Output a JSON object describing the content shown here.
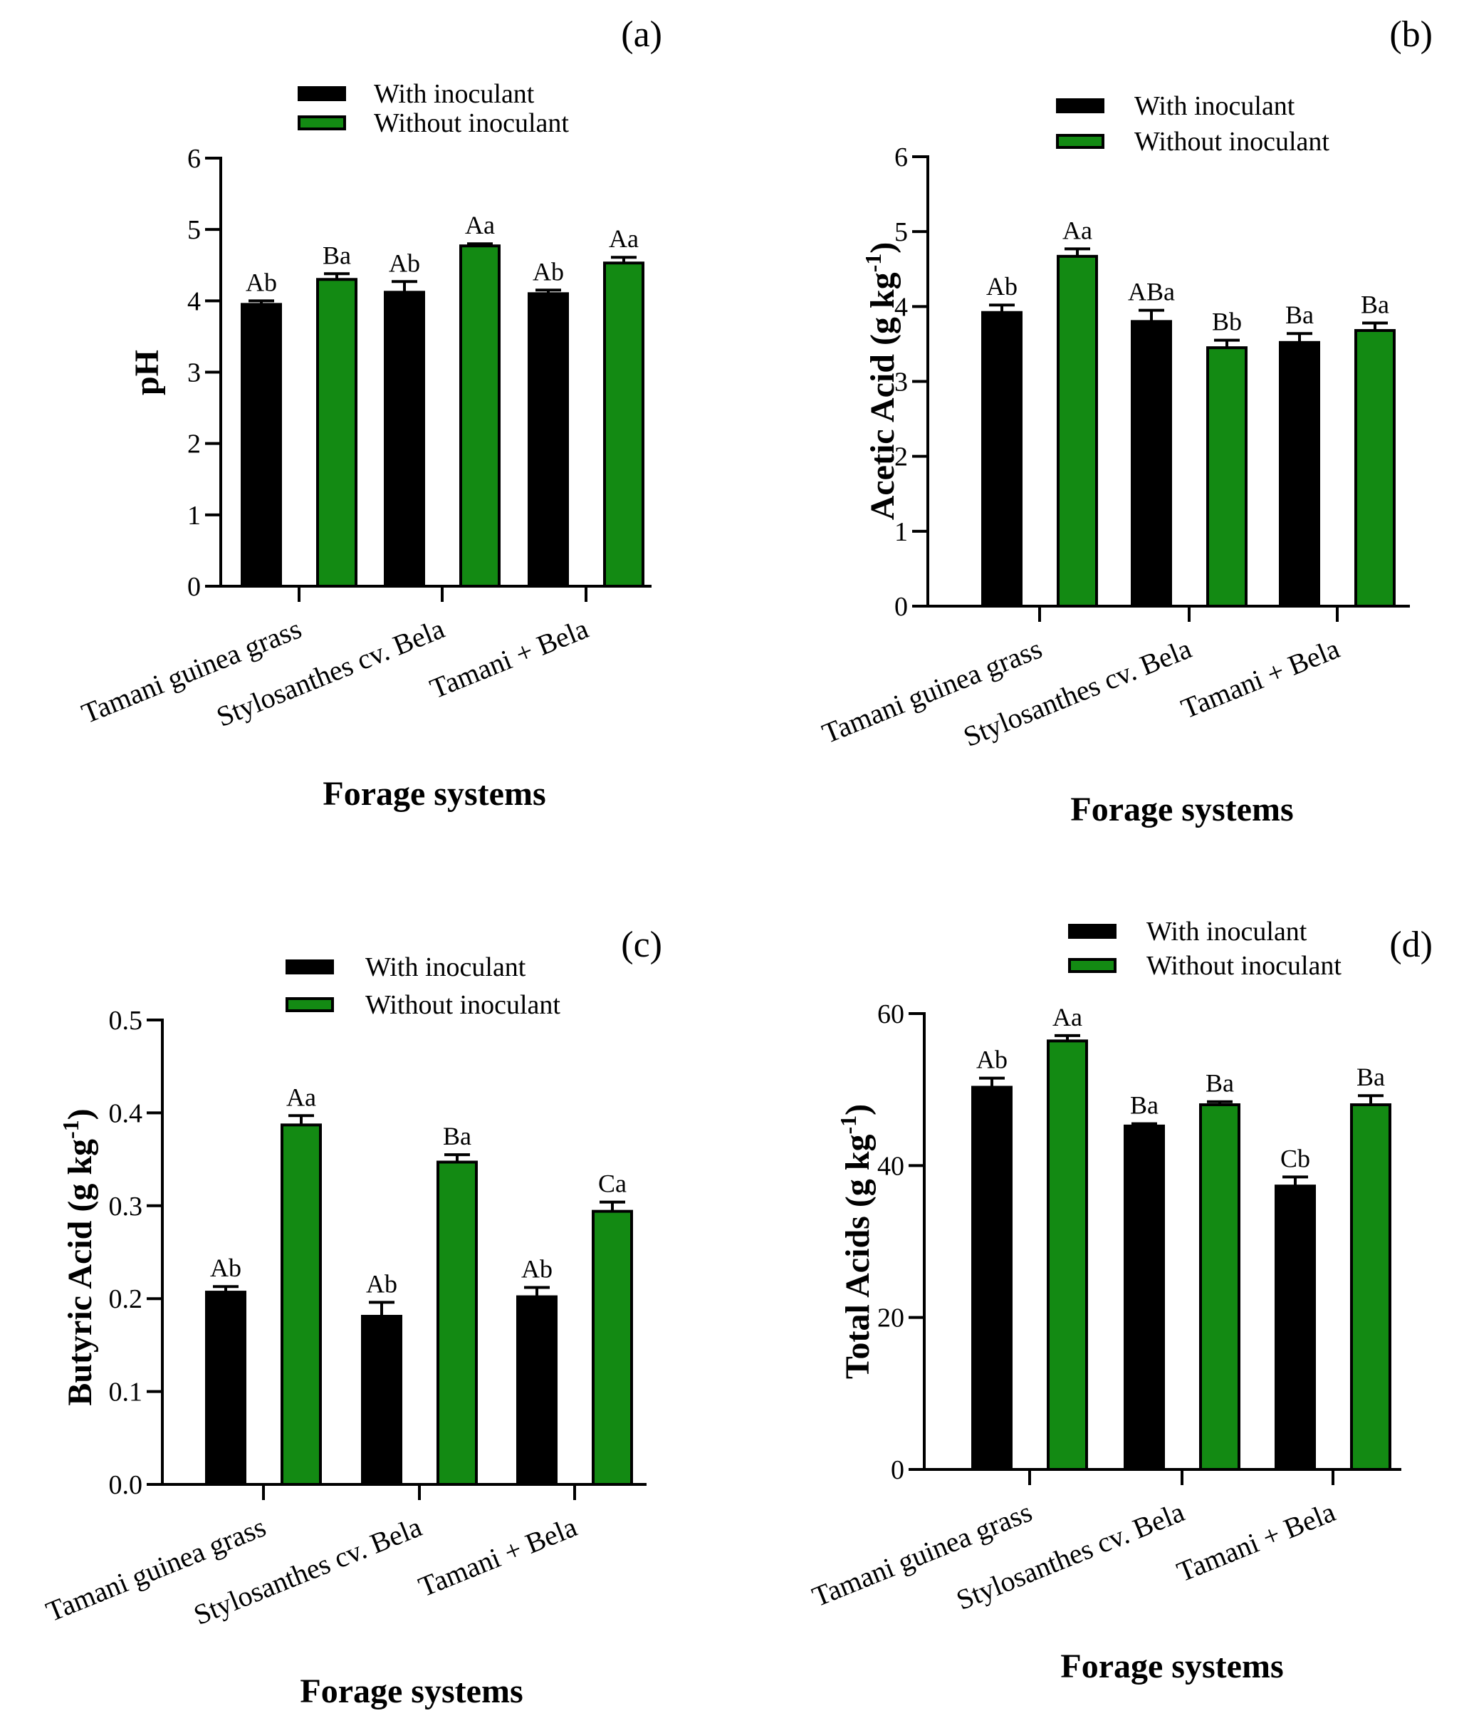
{
  "colors": {
    "with": "#000000",
    "without": "#138a13",
    "axis": "#000000"
  },
  "chart_data": [
    {
      "type": "bar",
      "panel": "(a)",
      "title": "",
      "ylabel": "pH",
      "ylabel_sup": "",
      "ylabel_close": "",
      "xlabel": "Forage systems",
      "categories": [
        "Tamani guinea grass",
        "Stylosanthes cv. Bela",
        "Tamani + Bela"
      ],
      "ylim": [
        0,
        6
      ],
      "yticks": [
        0,
        1,
        2,
        3,
        4,
        5,
        6
      ],
      "ytick_labels": [
        "0",
        "1",
        "2",
        "3",
        "4",
        "5",
        "6"
      ],
      "legend": [
        "With inoculant",
        "Without inoculant"
      ],
      "series": [
        {
          "name": "With inoculant",
          "values": [
            3.95,
            4.12,
            4.1
          ],
          "errors": [
            0.05,
            0.15,
            0.05
          ],
          "labels": [
            "Ab",
            "Ab",
            "Ab"
          ]
        },
        {
          "name": "Without inoculant",
          "values": [
            4.3,
            4.77,
            4.53
          ],
          "errors": [
            0.08,
            0.03,
            0.08
          ],
          "labels": [
            "Ba",
            "Aa",
            "Aa"
          ]
        }
      ]
    },
    {
      "type": "bar",
      "panel": "(b)",
      "title": "",
      "ylabel": "Acetic Acid (g kg",
      "ylabel_sup": "-1",
      "ylabel_close": ")",
      "xlabel": "Forage systems",
      "categories": [
        "Tamani guinea grass",
        "Stylosanthes cv. Bela",
        "Tamani + Bela"
      ],
      "ylim": [
        0,
        6
      ],
      "yticks": [
        0,
        1,
        2,
        3,
        4,
        5,
        6
      ],
      "ytick_labels": [
        "0",
        "1",
        "2",
        "3",
        "4",
        "5",
        "6"
      ],
      "legend": [
        "With inoculant",
        "Without inoculant"
      ],
      "series": [
        {
          "name": "With inoculant",
          "values": [
            3.92,
            3.8,
            3.52
          ],
          "errors": [
            0.1,
            0.15,
            0.12
          ],
          "labels": [
            "Ab",
            "ABa",
            "Ba"
          ]
        },
        {
          "name": "Without inoculant",
          "values": [
            4.67,
            3.45,
            3.68
          ],
          "errors": [
            0.1,
            0.1,
            0.1
          ],
          "labels": [
            "Aa",
            "Bb",
            "Ba"
          ]
        }
      ]
    },
    {
      "type": "bar",
      "panel": "(c)",
      "title": "",
      "ylabel": "Butyric Acid (g kg",
      "ylabel_sup": "-1",
      "ylabel_close": ")",
      "xlabel": "Forage systems",
      "categories": [
        "Tamani guinea grass",
        "Stylosanthes cv. Bela",
        "Tamani + Bela"
      ],
      "ylim": [
        0,
        0.5
      ],
      "yticks": [
        0,
        0.1,
        0.2,
        0.3,
        0.4,
        0.5
      ],
      "ytick_labels": [
        "0.0",
        "0.1",
        "0.2",
        "0.3",
        "0.4",
        "0.5"
      ],
      "legend": [
        "With inoculant",
        "Without inoculant"
      ],
      "series": [
        {
          "name": "With inoculant",
          "values": [
            0.207,
            0.181,
            0.202
          ],
          "errors": [
            0.006,
            0.015,
            0.01
          ],
          "labels": [
            "Ab",
            "Ab",
            "Ab"
          ]
        },
        {
          "name": "Without inoculant",
          "values": [
            0.387,
            0.347,
            0.294
          ],
          "errors": [
            0.01,
            0.008,
            0.01
          ],
          "labels": [
            "Aa",
            "Ba",
            "Ca"
          ]
        }
      ]
    },
    {
      "type": "bar",
      "panel": "(d)",
      "title": "",
      "ylabel": "Total Acids (g kg",
      "ylabel_sup": "-1",
      "ylabel_close": ")",
      "xlabel": "Forage systems",
      "categories": [
        "Tamani guinea grass",
        "Stylosanthes cv. Bela",
        "Tamani + Bela"
      ],
      "ylim": [
        0,
        60
      ],
      "yticks": [
        0,
        20,
        40,
        60
      ],
      "ytick_labels": [
        "0",
        "20",
        "40",
        "60"
      ],
      "legend": [
        "With inoculant",
        "Without inoculant"
      ],
      "series": [
        {
          "name": "With inoculant",
          "values": [
            50.3,
            45.2,
            37.3
          ],
          "errors": [
            1.2,
            0.3,
            1.2
          ],
          "labels": [
            "Ab",
            "Ba",
            "Cb"
          ]
        },
        {
          "name": "Without inoculant",
          "values": [
            56.4,
            48.0,
            48.0
          ],
          "errors": [
            0.7,
            0.4,
            1.2
          ],
          "labels": [
            "Aa",
            "Ba",
            "Ba"
          ]
        }
      ]
    }
  ]
}
